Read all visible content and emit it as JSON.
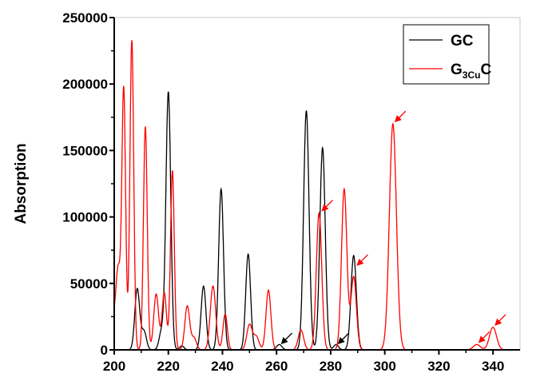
{
  "chart_data": {
    "type": "line",
    "title": "",
    "xlabel": "",
    "ylabel": "Absorption",
    "xlim": [
      200,
      350
    ],
    "ylim": [
      0,
      250000
    ],
    "xticks": [
      200,
      220,
      240,
      260,
      280,
      300,
      320,
      340
    ],
    "yticks": [
      0,
      50000,
      100000,
      150000,
      200000,
      250000
    ],
    "grid": false,
    "legend_position": "top-right",
    "series": [
      {
        "name": "GC",
        "legend_main": "GC",
        "legend_sub": "",
        "legend_tail": "",
        "color": "#000000",
        "peaks": [
          {
            "x": 208.5,
            "y": 46000,
            "w": 0.9
          },
          {
            "x": 211,
            "y": 14000,
            "w": 0.9
          },
          {
            "x": 217.5,
            "y": 14000,
            "w": 0.9
          },
          {
            "x": 220,
            "y": 194000,
            "w": 0.9
          },
          {
            "x": 225,
            "y": 3000,
            "w": 0.8
          },
          {
            "x": 233,
            "y": 48000,
            "w": 0.9
          },
          {
            "x": 239.5,
            "y": 121000,
            "w": 0.9
          },
          {
            "x": 249.5,
            "y": 72000,
            "w": 0.9
          },
          {
            "x": 261,
            "y": 4000,
            "w": 1.0
          },
          {
            "x": 271,
            "y": 180000,
            "w": 1.0
          },
          {
            "x": 277,
            "y": 152000,
            "w": 1.0
          },
          {
            "x": 282,
            "y": 4000,
            "w": 0.9
          },
          {
            "x": 288.5,
            "y": 71000,
            "w": 1.0
          }
        ],
        "arrows": [
          {
            "x": 261,
            "y": 3000
          },
          {
            "x": 282,
            "y": 3000
          }
        ]
      },
      {
        "name": "G3CuC",
        "legend_main": "G",
        "legend_sub": "3Cu",
        "legend_tail": "C",
        "color": "#ff0000",
        "peaks": [
          {
            "x": 199.5,
            "y": 25000,
            "w": 1.2
          },
          {
            "x": 201.5,
            "y": 55000,
            "w": 0.8
          },
          {
            "x": 203.5,
            "y": 196000,
            "w": 0.7
          },
          {
            "x": 206.5,
            "y": 233000,
            "w": 0.7
          },
          {
            "x": 211.5,
            "y": 168000,
            "w": 0.7
          },
          {
            "x": 215.5,
            "y": 42000,
            "w": 0.9
          },
          {
            "x": 218.5,
            "y": 43000,
            "w": 0.8
          },
          {
            "x": 221.5,
            "y": 135000,
            "w": 0.7
          },
          {
            "x": 227,
            "y": 33000,
            "w": 0.9
          },
          {
            "x": 229.5,
            "y": 9000,
            "w": 0.9
          },
          {
            "x": 236.5,
            "y": 48000,
            "w": 1.0
          },
          {
            "x": 241,
            "y": 27000,
            "w": 0.8
          },
          {
            "x": 250,
            "y": 19000,
            "w": 1.0
          },
          {
            "x": 252.5,
            "y": 10000,
            "w": 1.0
          },
          {
            "x": 257,
            "y": 45000,
            "w": 0.9
          },
          {
            "x": 269,
            "y": 15000,
            "w": 1.0
          },
          {
            "x": 275.7,
            "y": 103000,
            "w": 1.0
          },
          {
            "x": 285,
            "y": 121000,
            "w": 1.0
          },
          {
            "x": 288.5,
            "y": 55000,
            "w": 1.0
          },
          {
            "x": 303,
            "y": 170000,
            "w": 1.3
          },
          {
            "x": 334,
            "y": 4000,
            "w": 1.3
          },
          {
            "x": 340,
            "y": 17000,
            "w": 1.3
          }
        ],
        "arrows": [
          {
            "x": 276,
            "y": 103000
          },
          {
            "x": 289,
            "y": 62000
          },
          {
            "x": 303,
            "y": 170000
          },
          {
            "x": 334,
            "y": 4000
          },
          {
            "x": 340,
            "y": 17000
          }
        ]
      }
    ]
  }
}
